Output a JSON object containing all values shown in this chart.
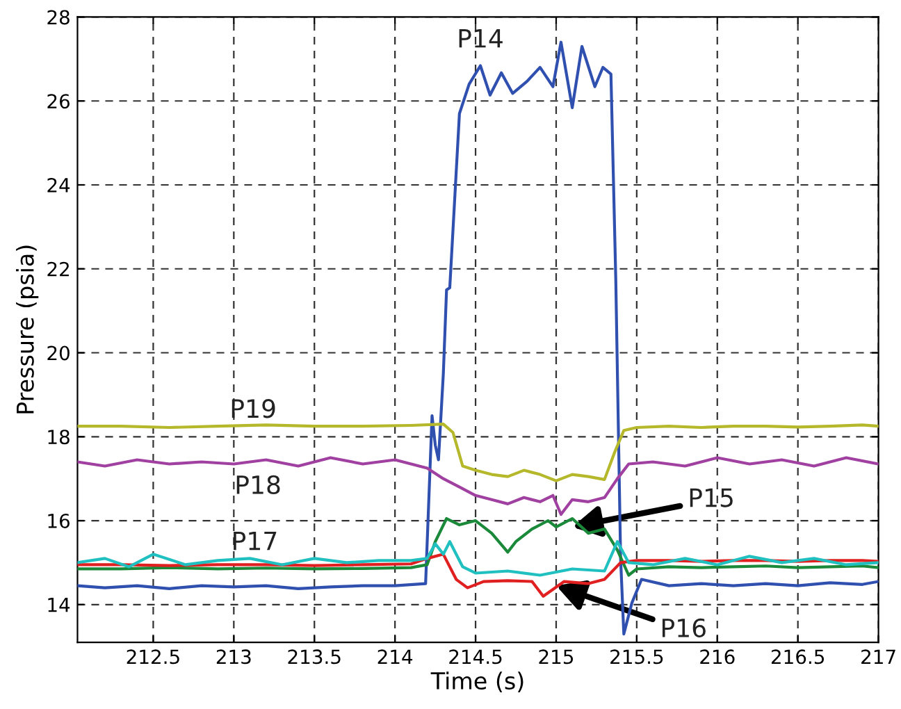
{
  "chart_data": {
    "type": "line",
    "xlabel": "Time (s)",
    "ylabel": "Pressure (psia)",
    "xlim": [
      212.03,
      217
    ],
    "ylim": [
      13.1,
      28
    ],
    "xticks": [
      212.5,
      213,
      213.5,
      214,
      214.5,
      215,
      215.5,
      216,
      216.5,
      217
    ],
    "yticks": [
      14,
      16,
      18,
      20,
      22,
      24,
      26,
      28
    ],
    "grid": true,
    "line_style": "solid",
    "marker": "none",
    "series": [
      {
        "color": "#3050b0",
        "x": [
          212.03,
          212.2,
          212.4,
          212.6,
          212.8,
          213.0,
          213.2,
          213.4,
          213.6,
          213.8,
          214.0,
          214.19,
          214.21,
          214.23,
          214.25,
          214.27,
          214.3,
          214.32,
          214.34,
          214.4,
          214.46,
          214.53,
          214.59,
          214.66,
          214.73,
          214.82,
          214.9,
          214.98,
          215.03,
          215.1,
          215.16,
          215.24,
          215.29,
          215.34,
          215.37,
          215.4,
          215.42,
          215.47,
          215.53,
          215.7,
          215.9,
          216.1,
          216.3,
          216.5,
          216.7,
          216.9,
          217.0
        ],
        "values": [
          14.45,
          14.4,
          14.45,
          14.38,
          14.45,
          14.42,
          14.45,
          14.38,
          14.42,
          14.45,
          14.45,
          14.5,
          16.5,
          18.5,
          17.8,
          17.45,
          19.5,
          21.5,
          21.55,
          25.7,
          26.4,
          26.84,
          26.14,
          26.67,
          26.18,
          26.47,
          26.8,
          26.34,
          27.4,
          25.84,
          27.3,
          26.34,
          26.8,
          26.64,
          21.76,
          15.1,
          13.3,
          14.04,
          14.6,
          14.45,
          14.5,
          14.45,
          14.5,
          14.45,
          14.52,
          14.48,
          14.55
        ]
      },
      {
        "color": "#1a8a3a",
        "x": [
          212.03,
          212.3,
          212.6,
          212.9,
          213.2,
          213.5,
          213.8,
          214.1,
          214.2,
          214.25,
          214.32,
          214.4,
          214.5,
          214.6,
          214.7,
          214.75,
          214.85,
          214.95,
          215.0,
          215.1,
          215.2,
          215.3,
          215.38,
          215.45,
          215.5,
          215.7,
          215.9,
          216.1,
          216.3,
          216.5,
          216.7,
          216.9,
          217.0
        ],
        "values": [
          14.85,
          14.85,
          14.88,
          14.85,
          14.87,
          14.85,
          14.86,
          14.88,
          14.95,
          15.5,
          16.05,
          15.9,
          16.0,
          15.7,
          15.25,
          15.5,
          15.8,
          16.0,
          15.85,
          16.05,
          15.7,
          15.8,
          15.3,
          14.7,
          14.85,
          14.9,
          14.88,
          14.9,
          14.92,
          14.88,
          14.9,
          14.92,
          14.88
        ]
      },
      {
        "color": "#e02020",
        "x": [
          212.03,
          212.3,
          212.6,
          212.9,
          213.2,
          213.5,
          213.8,
          214.1,
          214.2,
          214.3,
          214.38,
          214.45,
          214.55,
          214.7,
          214.85,
          214.92,
          215.05,
          215.2,
          215.3,
          215.4,
          215.5,
          215.7,
          215.9,
          216.1,
          216.3,
          216.5,
          216.7,
          216.9,
          217.0
        ],
        "values": [
          14.95,
          14.95,
          14.93,
          14.95,
          14.95,
          14.93,
          14.95,
          14.97,
          15.1,
          15.2,
          14.6,
          14.4,
          14.55,
          14.57,
          14.55,
          14.2,
          14.55,
          14.5,
          14.6,
          15.0,
          15.05,
          15.05,
          15.03,
          15.05,
          15.05,
          15.03,
          15.05,
          15.05,
          15.03
        ]
      },
      {
        "color": "#20c0c0",
        "x": [
          212.03,
          212.2,
          212.35,
          212.5,
          212.7,
          212.9,
          213.1,
          213.3,
          213.5,
          213.7,
          213.9,
          214.1,
          214.2,
          214.25,
          214.3,
          214.34,
          214.42,
          214.5,
          214.7,
          214.9,
          215.1,
          215.3,
          215.38,
          215.45,
          215.6,
          215.8,
          216.0,
          216.2,
          216.4,
          216.6,
          216.8,
          217.0
        ],
        "values": [
          15.0,
          15.1,
          14.9,
          15.2,
          14.95,
          15.05,
          15.1,
          14.95,
          15.1,
          15.0,
          15.05,
          15.05,
          15.1,
          15.45,
          15.2,
          15.5,
          14.9,
          14.75,
          14.8,
          14.7,
          14.85,
          14.8,
          15.5,
          15.0,
          14.95,
          15.1,
          14.95,
          15.15,
          15.0,
          15.1,
          14.95,
          15.0
        ]
      },
      {
        "color": "#a040a0",
        "x": [
          212.03,
          212.2,
          212.4,
          212.6,
          212.8,
          213.0,
          213.2,
          213.4,
          213.6,
          213.8,
          214.0,
          214.1,
          214.2,
          214.3,
          214.4,
          214.5,
          214.6,
          214.7,
          214.8,
          214.9,
          214.98,
          215.03,
          215.1,
          215.2,
          215.3,
          215.38,
          215.45,
          215.6,
          215.8,
          216.0,
          216.2,
          216.4,
          216.6,
          216.8,
          217.0
        ],
        "values": [
          17.4,
          17.3,
          17.45,
          17.35,
          17.4,
          17.35,
          17.45,
          17.3,
          17.5,
          17.35,
          17.45,
          17.35,
          17.25,
          17.0,
          16.8,
          16.6,
          16.5,
          16.4,
          16.55,
          16.45,
          16.6,
          16.15,
          16.5,
          16.45,
          16.55,
          17.0,
          17.35,
          17.4,
          17.3,
          17.5,
          17.35,
          17.45,
          17.3,
          17.5,
          17.35
        ]
      },
      {
        "color": "#b5b82a",
        "x": [
          212.03,
          212.3,
          212.6,
          212.9,
          213.2,
          213.5,
          213.8,
          214.1,
          214.3,
          214.36,
          214.42,
          214.5,
          214.6,
          214.7,
          214.8,
          214.9,
          215.0,
          215.1,
          215.2,
          215.3,
          215.36,
          215.42,
          215.5,
          215.7,
          215.9,
          216.1,
          216.3,
          216.5,
          216.7,
          216.9,
          217.0
        ],
        "values": [
          18.25,
          18.25,
          18.22,
          18.25,
          18.28,
          18.25,
          18.25,
          18.27,
          18.3,
          18.1,
          17.3,
          17.2,
          17.1,
          17.05,
          17.2,
          17.1,
          16.95,
          17.1,
          17.05,
          16.98,
          17.6,
          18.15,
          18.22,
          18.25,
          18.22,
          18.25,
          18.25,
          18.23,
          18.25,
          18.28,
          18.25
        ]
      }
    ],
    "annotations": [
      {
        "text": "P14",
        "x": 214.53,
        "y": 26.84
      },
      {
        "text": "P19",
        "x": 213.12,
        "y": 18.25
      },
      {
        "text": "P18",
        "x": 213.15,
        "y": 17.4
      },
      {
        "text": "P17",
        "x": 213.13,
        "y": 15.05
      },
      {
        "text": "P15",
        "x": 215.1,
        "y": 15.85
      },
      {
        "text": "P16",
        "x": 215.0,
        "y": 14.45
      }
    ]
  }
}
